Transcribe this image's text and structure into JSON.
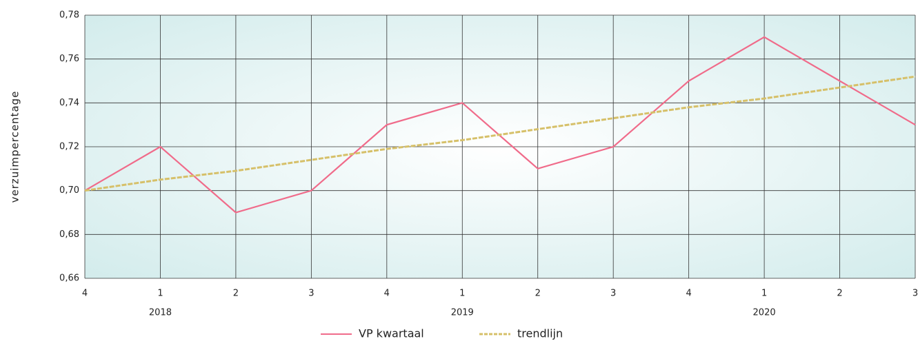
{
  "chart_data": {
    "type": "line",
    "y_label": "verzuimpercentage",
    "categories": [
      "4",
      "1",
      "2",
      "3",
      "4",
      "1",
      "2",
      "3",
      "4",
      "1",
      "2",
      "3"
    ],
    "year_labels": [
      null,
      "2018",
      null,
      null,
      null,
      "2019",
      null,
      null,
      null,
      "2020",
      null,
      null
    ],
    "series": [
      {
        "name": "VP kwartaal",
        "color": "#f06b8a",
        "values": [
          0.7,
          0.72,
          0.69,
          0.7,
          0.73,
          0.74,
          0.71,
          0.72,
          0.75,
          0.77,
          0.75,
          0.73
        ]
      },
      {
        "name": "trendlijn",
        "color": "#d6c069",
        "dashed": true,
        "values": [
          0.7,
          0.705,
          0.709,
          0.714,
          0.719,
          0.723,
          0.728,
          0.733,
          0.738,
          0.742,
          0.747,
          0.752
        ]
      }
    ],
    "ylim": [
      0.66,
      0.78
    ],
    "yticks": [
      {
        "value": 0.66,
        "label": "0,66"
      },
      {
        "value": 0.68,
        "label": "0,68"
      },
      {
        "value": 0.7,
        "label": "0,70"
      },
      {
        "value": 0.72,
        "label": "0,72"
      },
      {
        "value": 0.74,
        "label": "0,74"
      },
      {
        "value": 0.76,
        "label": "0,76"
      },
      {
        "value": 0.78,
        "label": "0,78"
      }
    ],
    "grid": true,
    "legend": "bottom"
  }
}
